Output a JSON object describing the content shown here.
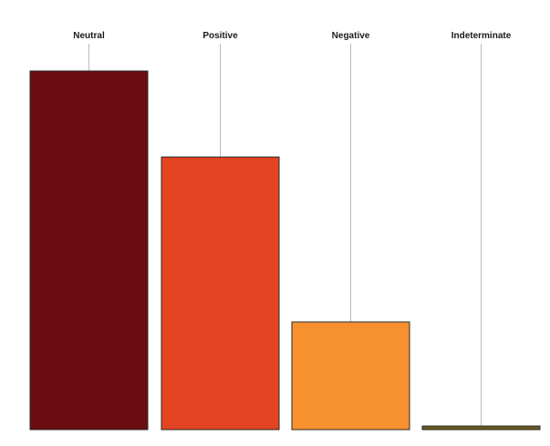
{
  "chart_data": {
    "type": "bar",
    "categories": [
      "Neutral",
      "Positive",
      "Negative",
      "Indeterminate"
    ],
    "values": [
      100,
      76,
      30,
      1
    ],
    "title": "",
    "xlabel": "",
    "ylabel": "",
    "ylim": [
      0,
      100
    ],
    "grid": false,
    "legend": "none",
    "colors": [
      "#6b0c10",
      "#e34421",
      "#f7902f",
      "#6b5a1e"
    ]
  }
}
